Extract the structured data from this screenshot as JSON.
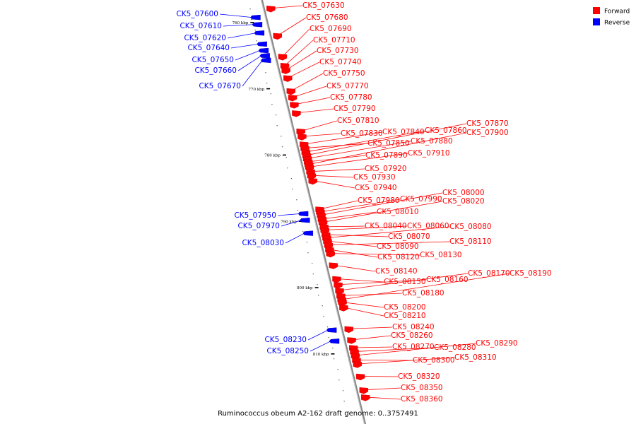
{
  "colors": {
    "forward": "#ff0000",
    "reverse": "#0000ff",
    "backbone": "#888888"
  },
  "legend": [
    {
      "label": "Forward",
      "color": "#ff0000"
    },
    {
      "label": "Reverse",
      "color": "#0000ff"
    }
  ],
  "caption": "Ruminococcus obeum A2-162 draft genome: 0..3757491",
  "ticks": [
    {
      "kbp": 760,
      "label": "760 kbp"
    },
    {
      "kbp": 770,
      "label": "770 kbp"
    },
    {
      "kbp": 780,
      "label": "780 kbp"
    },
    {
      "kbp": 790,
      "label": "790 kbp"
    },
    {
      "kbp": 800,
      "label": "800 kbp"
    },
    {
      "kbp": 810,
      "label": "810 kbp"
    }
  ],
  "genes": [
    {
      "id": "CK5_07600",
      "strand": "reverse",
      "kbp": 759.2
    },
    {
      "id": "CK5_07610",
      "strand": "reverse",
      "kbp": 760.3
    },
    {
      "id": "CK5_07620",
      "strand": "reverse",
      "kbp": 761.6
    },
    {
      "id": "CK5_07630",
      "strand": "forward",
      "kbp": 757.8
    },
    {
      "id": "CK5_07640",
      "strand": "reverse",
      "kbp": 763.3
    },
    {
      "id": "CK5_07650",
      "strand": "reverse",
      "kbp": 764.3
    },
    {
      "id": "CK5_07660",
      "strand": "reverse",
      "kbp": 765.1
    },
    {
      "id": "CK5_07670",
      "strand": "reverse",
      "kbp": 765.8
    },
    {
      "id": "CK5_07680",
      "strand": "forward",
      "kbp": 762.0
    },
    {
      "id": "CK5_07690",
      "strand": "forward",
      "kbp": 765.2
    },
    {
      "id": "CK5_07710",
      "strand": "forward",
      "kbp": 766.6
    },
    {
      "id": "CK5_07730",
      "strand": "forward",
      "kbp": 767.3
    },
    {
      "id": "CK5_07740",
      "strand": "forward",
      "kbp": 768.5
    },
    {
      "id": "CK5_07750",
      "strand": "forward",
      "kbp": 770.5
    },
    {
      "id": "CK5_07770",
      "strand": "forward",
      "kbp": 771.5
    },
    {
      "id": "CK5_07780",
      "strand": "forward",
      "kbp": 772.6
    },
    {
      "id": "CK5_07790",
      "strand": "forward",
      "kbp": 773.9
    },
    {
      "id": "CK5_07810",
      "strand": "forward",
      "kbp": 776.7
    },
    {
      "id": "CK5_07830",
      "strand": "forward",
      "kbp": 777.5
    },
    {
      "id": "CK5_07840",
      "strand": "forward",
      "kbp": 778.7
    },
    {
      "id": "CK5_07850",
      "strand": "forward",
      "kbp": 779.3
    },
    {
      "id": "CK5_07860",
      "strand": "forward",
      "kbp": 779.9
    },
    {
      "id": "CK5_07870",
      "strand": "forward",
      "kbp": 780.4
    },
    {
      "id": "CK5_07880",
      "strand": "forward",
      "kbp": 780.9
    },
    {
      "id": "CK5_07890",
      "strand": "forward",
      "kbp": 781.4
    },
    {
      "id": "CK5_07900",
      "strand": "forward",
      "kbp": 781.8
    },
    {
      "id": "CK5_07910",
      "strand": "forward",
      "kbp": 782.2
    },
    {
      "id": "CK5_07920",
      "strand": "forward",
      "kbp": 782.9
    },
    {
      "id": "CK5_07930",
      "strand": "forward",
      "kbp": 783.5
    },
    {
      "id": "CK5_07940",
      "strand": "forward",
      "kbp": 784.3
    },
    {
      "id": "CK5_07950",
      "strand": "reverse",
      "kbp": 789.4
    },
    {
      "id": "CK5_07970",
      "strand": "reverse",
      "kbp": 790.4
    },
    {
      "id": "CK5_07980",
      "strand": "forward",
      "kbp": 788.7
    },
    {
      "id": "CK5_07990",
      "strand": "forward",
      "kbp": 789.1
    },
    {
      "id": "CK5_08000",
      "strand": "forward",
      "kbp": 789.6
    },
    {
      "id": "CK5_08010",
      "strand": "forward",
      "kbp": 790.2
    },
    {
      "id": "CK5_08020",
      "strand": "forward",
      "kbp": 790.7
    },
    {
      "id": "CK5_08030",
      "strand": "reverse",
      "kbp": 792.4
    },
    {
      "id": "CK5_08040",
      "strand": "forward",
      "kbp": 791.4
    },
    {
      "id": "CK5_08060",
      "strand": "forward",
      "kbp": 791.9
    },
    {
      "id": "CK5_08070",
      "strand": "forward",
      "kbp": 792.6
    },
    {
      "id": "CK5_08080",
      "strand": "forward",
      "kbp": 793.1
    },
    {
      "id": "CK5_08090",
      "strand": "forward",
      "kbp": 793.6
    },
    {
      "id": "CK5_08110",
      "strand": "forward",
      "kbp": 794.2
    },
    {
      "id": "CK5_08120",
      "strand": "forward",
      "kbp": 794.9
    },
    {
      "id": "CK5_08130",
      "strand": "forward",
      "kbp": 795.5
    },
    {
      "id": "CK5_08140",
      "strand": "forward",
      "kbp": 797.3
    },
    {
      "id": "CK5_08150",
      "strand": "forward",
      "kbp": 799.4
    },
    {
      "id": "CK5_08160",
      "strand": "forward",
      "kbp": 800.3
    },
    {
      "id": "CK5_08170",
      "strand": "forward",
      "kbp": 801.2
    },
    {
      "id": "CK5_08180",
      "strand": "forward",
      "kbp": 802.0
    },
    {
      "id": "CK5_08190",
      "strand": "forward",
      "kbp": 802.6
    },
    {
      "id": "CK5_08200",
      "strand": "forward",
      "kbp": 803.0
    },
    {
      "id": "CK5_08210",
      "strand": "forward",
      "kbp": 803.8
    },
    {
      "id": "CK5_08230",
      "strand": "reverse",
      "kbp": 807.3
    },
    {
      "id": "CK5_08240",
      "strand": "forward",
      "kbp": 807.1
    },
    {
      "id": "CK5_08250",
      "strand": "reverse",
      "kbp": 809.0
    },
    {
      "id": "CK5_08260",
      "strand": "forward",
      "kbp": 808.8
    },
    {
      "id": "CK5_08270",
      "strand": "forward",
      "kbp": 810.0
    },
    {
      "id": "CK5_08280",
      "strand": "forward",
      "kbp": 810.6
    },
    {
      "id": "CK5_08290",
      "strand": "forward",
      "kbp": 811.2
    },
    {
      "id": "CK5_08300",
      "strand": "forward",
      "kbp": 811.9
    },
    {
      "id": "CK5_08310",
      "strand": "forward",
      "kbp": 812.5
    },
    {
      "id": "CK5_08320",
      "strand": "forward",
      "kbp": 814.4
    },
    {
      "id": "CK5_08350",
      "strand": "forward",
      "kbp": 816.5
    },
    {
      "id": "CK5_08360",
      "strand": "forward",
      "kbp": 817.6
    }
  ]
}
